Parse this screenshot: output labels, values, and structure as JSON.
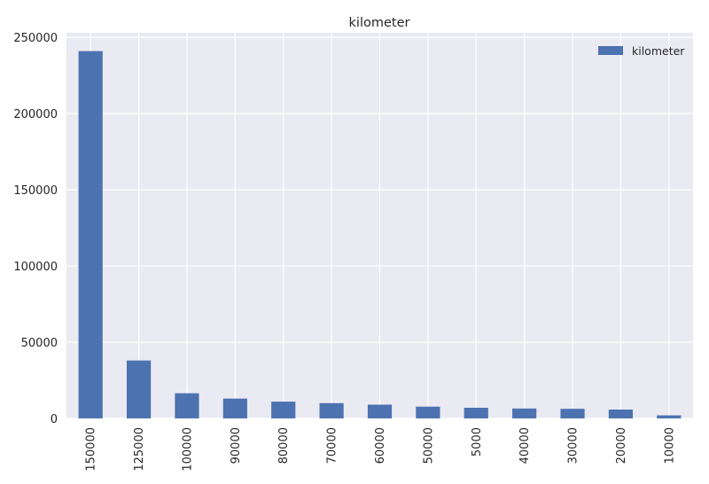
{
  "chart_data": {
    "type": "bar",
    "title": "kilometer",
    "xlabel": "",
    "ylabel": "",
    "categories": [
      "150000",
      "125000",
      "100000",
      "90000",
      "80000",
      "70000",
      "60000",
      "50000",
      "5000",
      "40000",
      "30000",
      "20000",
      "10000"
    ],
    "series": [
      {
        "name": "kilometer",
        "color": "#4c72b0",
        "values": [
          241000,
          38000,
          16500,
          13000,
          11000,
          10000,
          9000,
          7700,
          7000,
          6500,
          6300,
          5800,
          2000
        ]
      }
    ],
    "ylim": [
      0,
      253000
    ],
    "yticks": [
      0,
      50000,
      100000,
      150000,
      200000,
      250000
    ],
    "ytick_labels": [
      "0",
      "50000",
      "100000",
      "150000",
      "200000",
      "250000"
    ],
    "xtick_rotation": "vertical",
    "grid": true,
    "legend": {
      "position": "top-right",
      "entries": [
        "kilometer"
      ]
    },
    "colors": {
      "plot_background": "#eaeaf2",
      "grid": "#ffffff",
      "text": "#262626"
    }
  }
}
